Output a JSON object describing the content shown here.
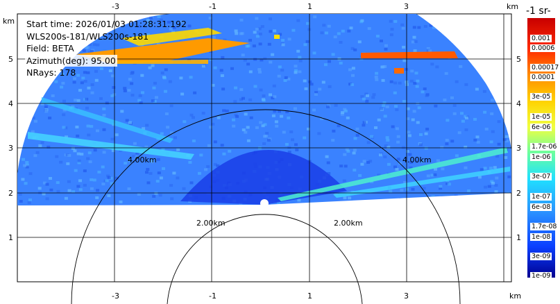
{
  "info": {
    "start_time": "Start time: 2026/01/03 01:28:31.192",
    "instrument": "WLS200s-181/WLS200s-181",
    "field": "Field: BETA",
    "azimuth": "Azimuth(deg): 95.00",
    "nrays": "NRays: 178"
  },
  "colorbar": {
    "title": "-1 sr-",
    "labels": [
      "0.001",
      "0.0006",
      "0.00017",
      "0.0001",
      "3e-05",
      "1e-05",
      "6e-06",
      "1.7e-06",
      "1e-06",
      "3e-07",
      "1e-07",
      "6e-08",
      "1.7e-08",
      "1e-08",
      "3e-09",
      "1e-09"
    ]
  },
  "axes": {
    "x_ticks": [
      "-3",
      "-1",
      "1",
      "3"
    ],
    "x_unit": "km",
    "y_ticks": [
      "5",
      "4",
      "3",
      "2",
      "1"
    ],
    "y_unit": "km",
    "range_rings": [
      "4.00km",
      "4.00km",
      "2.00km",
      "2.00km"
    ]
  },
  "colors": {
    "bg_field": "#2f78ff",
    "dense_core": "#1030e0",
    "high": "#ff8a00",
    "mid": "#00d0ff"
  }
}
